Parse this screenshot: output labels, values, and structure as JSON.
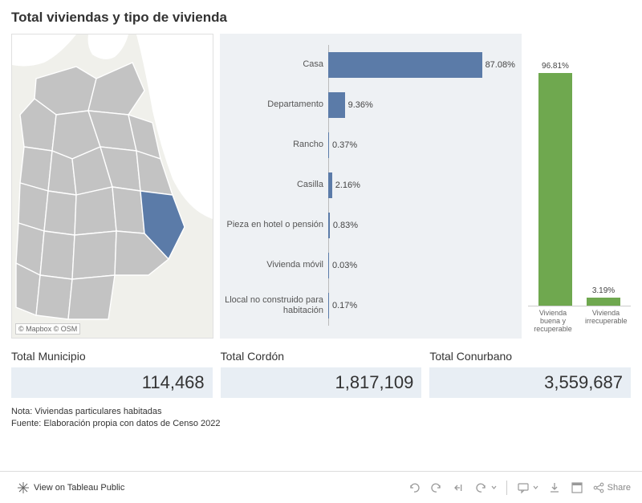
{
  "title": "Total viviendas y tipo de vivienda",
  "map": {
    "attribution": "© Mapbox   © OSM",
    "water_color": "#ffffff",
    "land_color": "#f0f0eb",
    "region_fill": "#c3c3c3",
    "region_stroke": "#ffffff",
    "highlight_fill": "#5b7ba8"
  },
  "bar_chart": {
    "type": "bar",
    "background": "#eef1f4",
    "axis_color": "#bbbbbb",
    "max": 100,
    "bar_color": "#5b7ba8",
    "label_fontsize": 11,
    "value_fontsize": 11,
    "items": [
      {
        "label": "Casa",
        "value": 87.08,
        "display": "87.08%"
      },
      {
        "label": "Departamento",
        "value": 9.36,
        "display": "9.36%"
      },
      {
        "label": "Rancho",
        "value": 0.37,
        "display": "0.37%"
      },
      {
        "label": "Casilla",
        "value": 2.16,
        "display": "2.16%"
      },
      {
        "label": "Pieza en hotel o pensión",
        "value": 0.83,
        "display": "0.83%"
      },
      {
        "label": "Vivienda móvil",
        "value": 0.03,
        "display": "0.03%"
      },
      {
        "label": "Llocal no construido para habitación",
        "value": 0.17,
        "display": "0.17%"
      }
    ]
  },
  "column_chart": {
    "type": "bar",
    "max": 100,
    "bar_color": "#6fa84f",
    "label_fontsize": 9,
    "value_fontsize": 10,
    "items": [
      {
        "label": "Vivienda buena y recuperable",
        "value": 96.81,
        "display": "96.81%"
      },
      {
        "label": "Vivienda irrecuperable",
        "value": 3.19,
        "display": "3.19%"
      }
    ]
  },
  "stats": [
    {
      "title": "Total Municipio",
      "value": "114,468"
    },
    {
      "title": "Total Cordón",
      "value": "1,817,109"
    },
    {
      "title": "Total Conurbano",
      "value": "3,559,687"
    }
  ],
  "stat_bg": "#e8eef4",
  "note1": "Nota: Viviendas particulares habitadas",
  "note2": "Fuente: Elaboración propia con datos de Censo 2022",
  "footer": {
    "view_label": "View on Tableau Public",
    "share_label": "Share"
  }
}
